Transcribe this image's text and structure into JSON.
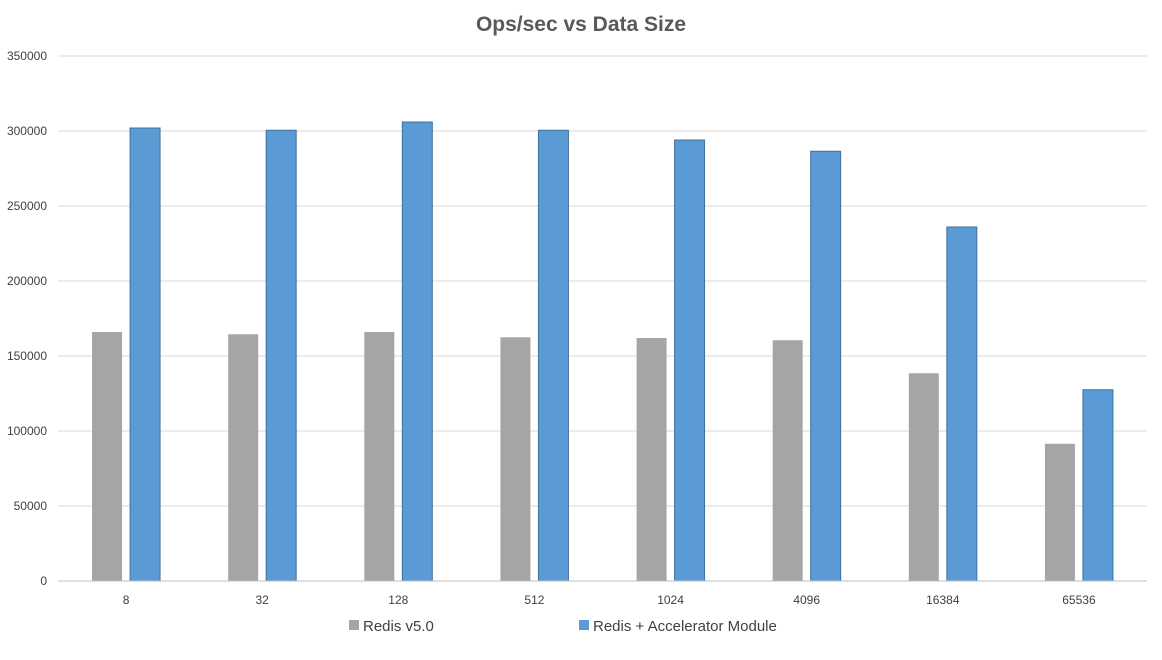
{
  "chart_data": {
    "type": "bar",
    "title": "Ops/sec vs Data Size",
    "xlabel": "",
    "ylabel": "",
    "categories": [
      "8",
      "32",
      "128",
      "512",
      "1024",
      "4096",
      "16384",
      "65536"
    ],
    "series": [
      {
        "name": "Redis v5.0",
        "color": "#a5a5a5",
        "values": [
          166000,
          164500,
          166000,
          162500,
          162000,
          160500,
          138500,
          91500
        ]
      },
      {
        "name": "Redis + Accelerator Module",
        "color": "#5b9bd5",
        "values": [
          302000,
          300500,
          306000,
          300500,
          294000,
          286500,
          236000,
          127500
        ]
      }
    ],
    "ylim": [
      0,
      350000
    ],
    "yticks": [
      "0",
      "50000",
      "100000",
      "150000",
      "200000",
      "250000",
      "300000",
      "350000"
    ],
    "grid": true,
    "legend_position": "bottom"
  }
}
